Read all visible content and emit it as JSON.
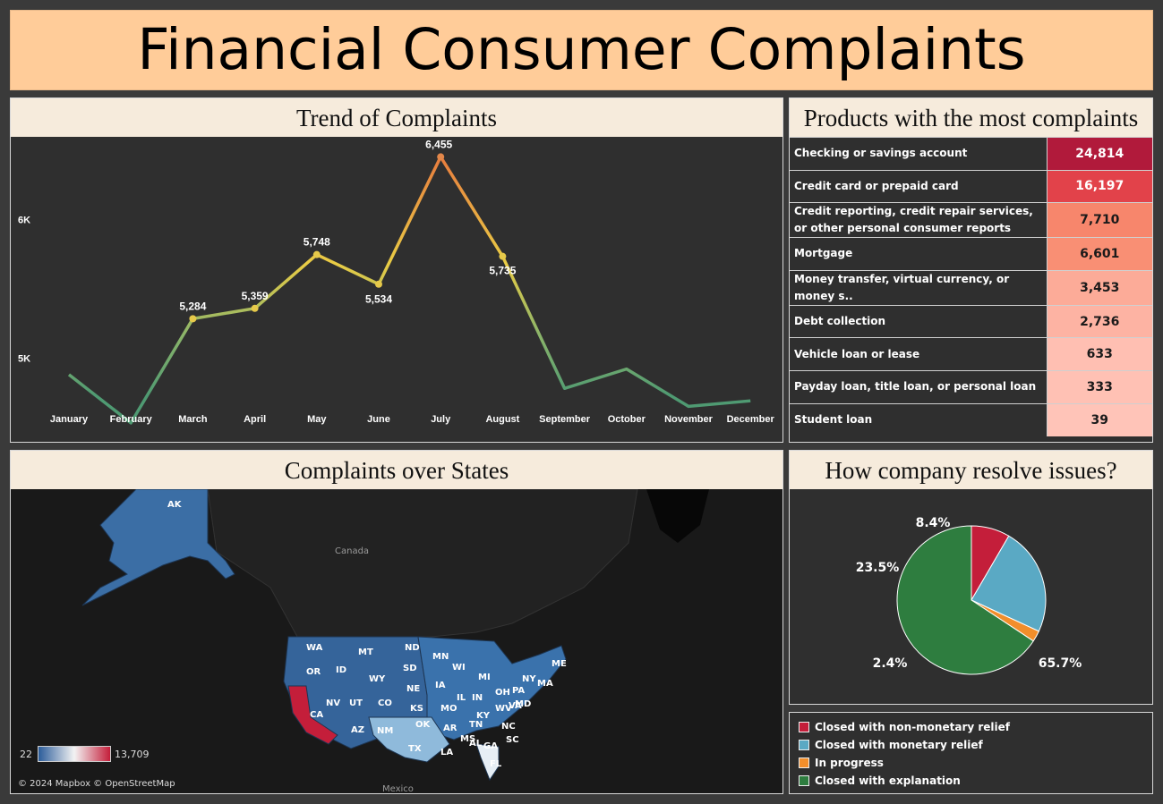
{
  "header": {
    "title": "Financial Consumer Complaints"
  },
  "trend": {
    "title": "Trend of Complaints",
    "y_ticks": [
      "6K",
      "5K"
    ],
    "chart_data": {
      "type": "line",
      "title": "Trend of Complaints",
      "categories": [
        "January",
        "February",
        "March",
        "April",
        "May",
        "June",
        "July",
        "August",
        "September",
        "October",
        "November",
        "December"
      ],
      "values": [
        4880,
        4530,
        5284,
        5359,
        5748,
        5534,
        6455,
        5735,
        4780,
        4920,
        4650,
        4690
      ],
      "labels": [
        "",
        "",
        "5,284",
        "5,359",
        "5,748",
        "5,534",
        "6,455",
        "5,735",
        "",
        "",
        "",
        ""
      ],
      "ylim": [
        4400,
        6600
      ],
      "xlabel": "",
      "ylabel": ""
    }
  },
  "products": {
    "title": "Products with the most complaints",
    "rows": [
      {
        "name": "Checking or savings account",
        "value": "24,814",
        "color": "#b11a3b",
        "text": "#ffffff"
      },
      {
        "name": "Credit card or prepaid card",
        "value": "16,197",
        "color": "#e2424a",
        "text": "#ffffff"
      },
      {
        "name": "Credit reporting, credit repair services, or other personal consumer reports",
        "value": "7,710",
        "color": "#f7866c",
        "text": "#1a1a1a"
      },
      {
        "name": "Mortgage",
        "value": "6,601",
        "color": "#f98f74",
        "text": "#1a1a1a"
      },
      {
        "name": "Money transfer, virtual currency, or money s..",
        "value": "3,453",
        "color": "#fcab98",
        "text": "#1a1a1a"
      },
      {
        "name": "Debt collection",
        "value": "2,736",
        "color": "#fdb3a3",
        "text": "#1a1a1a"
      },
      {
        "name": "Vehicle loan or lease",
        "value": "633",
        "color": "#ffbfb2",
        "text": "#1a1a1a"
      },
      {
        "name": "Payday loan, title loan, or personal loan",
        "value": "333",
        "color": "#ffc1b4",
        "text": "#1a1a1a"
      },
      {
        "name": "Student loan",
        "value": "39",
        "color": "#ffc4b8",
        "text": "#1a1a1a"
      }
    ]
  },
  "states": {
    "title": "Complaints over States",
    "legend_min": "22",
    "legend_max": "13,709",
    "attribution": "© 2024 Mapbox © OpenStreetMap",
    "country_labels": [
      "Canada",
      "Mexico"
    ],
    "state_labels": [
      "AK",
      "WA",
      "OR",
      "CA",
      "ID",
      "NV",
      "MT",
      "WY",
      "UT",
      "AZ",
      "CO",
      "NM",
      "ND",
      "SD",
      "NE",
      "KS",
      "OK",
      "TX",
      "MN",
      "IA",
      "MO",
      "AR",
      "LA",
      "WI",
      "IL",
      "MI",
      "IN",
      "KY",
      "TN",
      "MS",
      "AL",
      "GA",
      "FL",
      "OH",
      "WV",
      "VA",
      "NC",
      "SC",
      "PA",
      "NY",
      "MD",
      "MA",
      "ME"
    ]
  },
  "resolve": {
    "title": "How company resolve issues?",
    "chart_data": {
      "type": "pie",
      "title": "How company resolve issues?",
      "slices": [
        {
          "name": "Closed with non-monetary relief",
          "value": 8.4,
          "label": "8.4%",
          "color": "#c41e3a"
        },
        {
          "name": "Closed with monetary relief",
          "value": 23.5,
          "label": "23.5%",
          "color": "#5aa9c4"
        },
        {
          "name": "In progress",
          "value": 2.4,
          "label": "2.4%",
          "color": "#f28e2b"
        },
        {
          "name": "Closed with explanation",
          "value": 65.7,
          "label": "65.7%",
          "color": "#2e7d3f"
        }
      ]
    }
  },
  "legend": {
    "items": [
      {
        "label": "Closed with non-monetary relief",
        "color": "#c41e3a"
      },
      {
        "label": "Closed with monetary relief",
        "color": "#5aa9c4"
      },
      {
        "label": "In progress",
        "color": "#f28e2b"
      },
      {
        "label": "Closed with explanation",
        "color": "#2e7d3f"
      }
    ]
  }
}
